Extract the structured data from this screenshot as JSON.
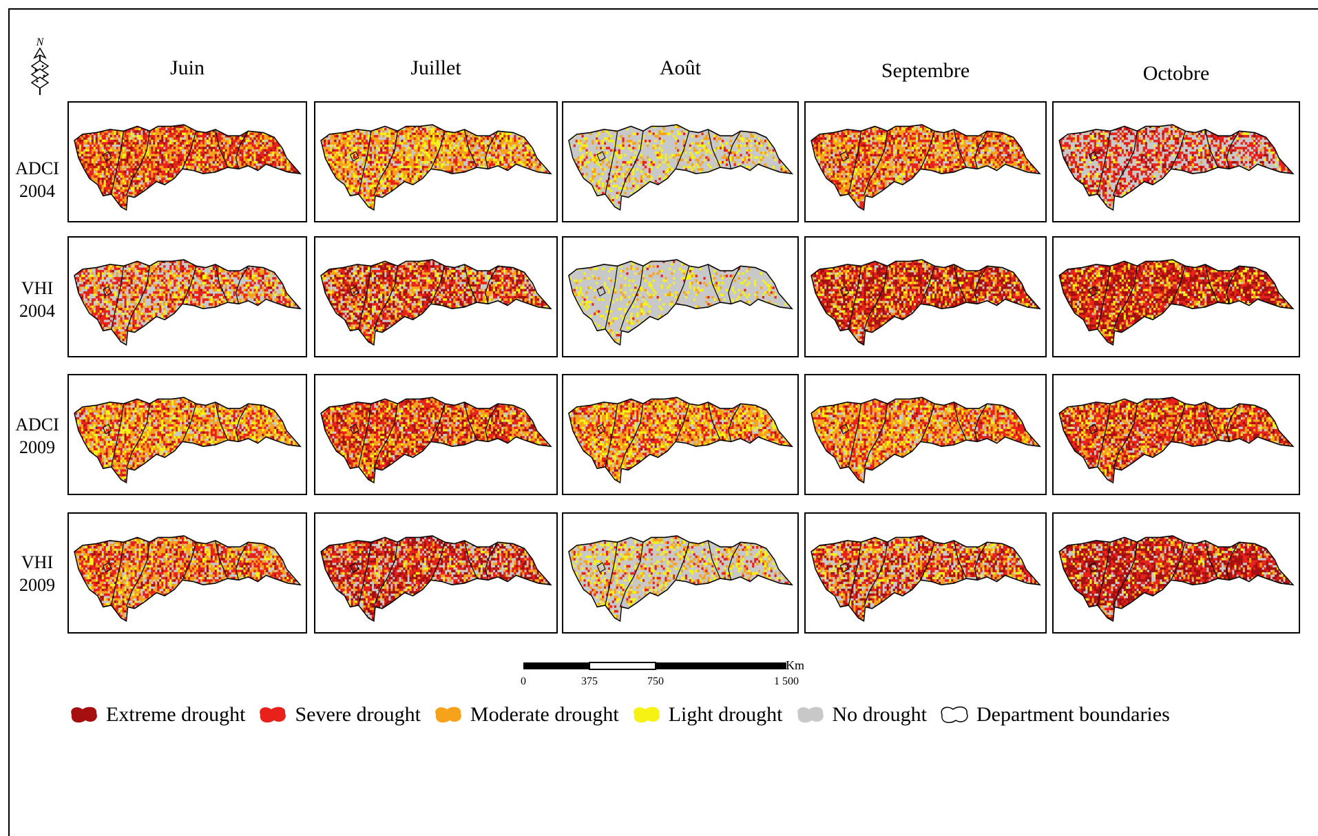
{
  "months": [
    "Juin",
    "Juillet",
    "Août",
    "Septembre",
    "Octobre"
  ],
  "rows": [
    {
      "index": "ADCI",
      "year": "2004"
    },
    {
      "index": "VHI",
      "year": "2004"
    },
    {
      "index": "ADCI",
      "year": "2009"
    },
    {
      "index": "VHI",
      "year": "2009"
    }
  ],
  "north_label": "N",
  "scale": {
    "unit": "Km",
    "ticks": [
      "0",
      "375",
      "750",
      "1 500"
    ]
  },
  "legend": [
    {
      "label": "Extreme drought",
      "color": "#a50f0f"
    },
    {
      "label": "Severe drought",
      "color": "#e8211b"
    },
    {
      "label": "Moderate drought",
      "color": "#f7a21b"
    },
    {
      "label": "Light drought",
      "color": "#f6f214"
    },
    {
      "label": "No drought",
      "color": "#c8c8c8"
    },
    {
      "label": "Department boundaries",
      "color": "#ffffff"
    }
  ],
  "map_data": [
    [
      {
        "extreme": 0.15,
        "severe": 0.35,
        "moderate": 0.3,
        "light": 0.1,
        "none": 0.1
      },
      {
        "extreme": 0.05,
        "severe": 0.2,
        "moderate": 0.35,
        "light": 0.2,
        "none": 0.2
      },
      {
        "extreme": 0.0,
        "severe": 0.05,
        "moderate": 0.1,
        "light": 0.15,
        "none": 0.7
      },
      {
        "extreme": 0.1,
        "severe": 0.3,
        "moderate": 0.35,
        "light": 0.1,
        "none": 0.15
      },
      {
        "extreme": 0.1,
        "severe": 0.35,
        "moderate": 0.05,
        "light": 0.05,
        "none": 0.45
      }
    ],
    [
      {
        "extreme": 0.05,
        "severe": 0.3,
        "moderate": 0.2,
        "light": 0.1,
        "none": 0.35
      },
      {
        "extreme": 0.25,
        "severe": 0.25,
        "moderate": 0.2,
        "light": 0.1,
        "none": 0.2
      },
      {
        "extreme": 0.0,
        "severe": 0.02,
        "moderate": 0.05,
        "light": 0.13,
        "none": 0.8
      },
      {
        "extreme": 0.35,
        "severe": 0.25,
        "moderate": 0.2,
        "light": 0.1,
        "none": 0.1
      },
      {
        "extreme": 0.4,
        "severe": 0.3,
        "moderate": 0.15,
        "light": 0.1,
        "none": 0.05
      }
    ],
    [
      {
        "extreme": 0.05,
        "severe": 0.25,
        "moderate": 0.35,
        "light": 0.2,
        "none": 0.15
      },
      {
        "extreme": 0.2,
        "severe": 0.3,
        "moderate": 0.3,
        "light": 0.1,
        "none": 0.1
      },
      {
        "extreme": 0.05,
        "severe": 0.25,
        "moderate": 0.35,
        "light": 0.2,
        "none": 0.15
      },
      {
        "extreme": 0.05,
        "severe": 0.3,
        "moderate": 0.35,
        "light": 0.15,
        "none": 0.15
      },
      {
        "extreme": 0.2,
        "severe": 0.35,
        "moderate": 0.25,
        "light": 0.1,
        "none": 0.1
      }
    ],
    [
      {
        "extreme": 0.1,
        "severe": 0.3,
        "moderate": 0.3,
        "light": 0.1,
        "none": 0.2
      },
      {
        "extreme": 0.3,
        "severe": 0.25,
        "moderate": 0.15,
        "light": 0.05,
        "none": 0.25
      },
      {
        "extreme": 0.0,
        "severe": 0.1,
        "moderate": 0.15,
        "light": 0.15,
        "none": 0.6
      },
      {
        "extreme": 0.2,
        "severe": 0.25,
        "moderate": 0.2,
        "light": 0.1,
        "none": 0.25
      },
      {
        "extreme": 0.45,
        "severe": 0.25,
        "moderate": 0.1,
        "light": 0.05,
        "none": 0.15
      }
    ]
  ]
}
